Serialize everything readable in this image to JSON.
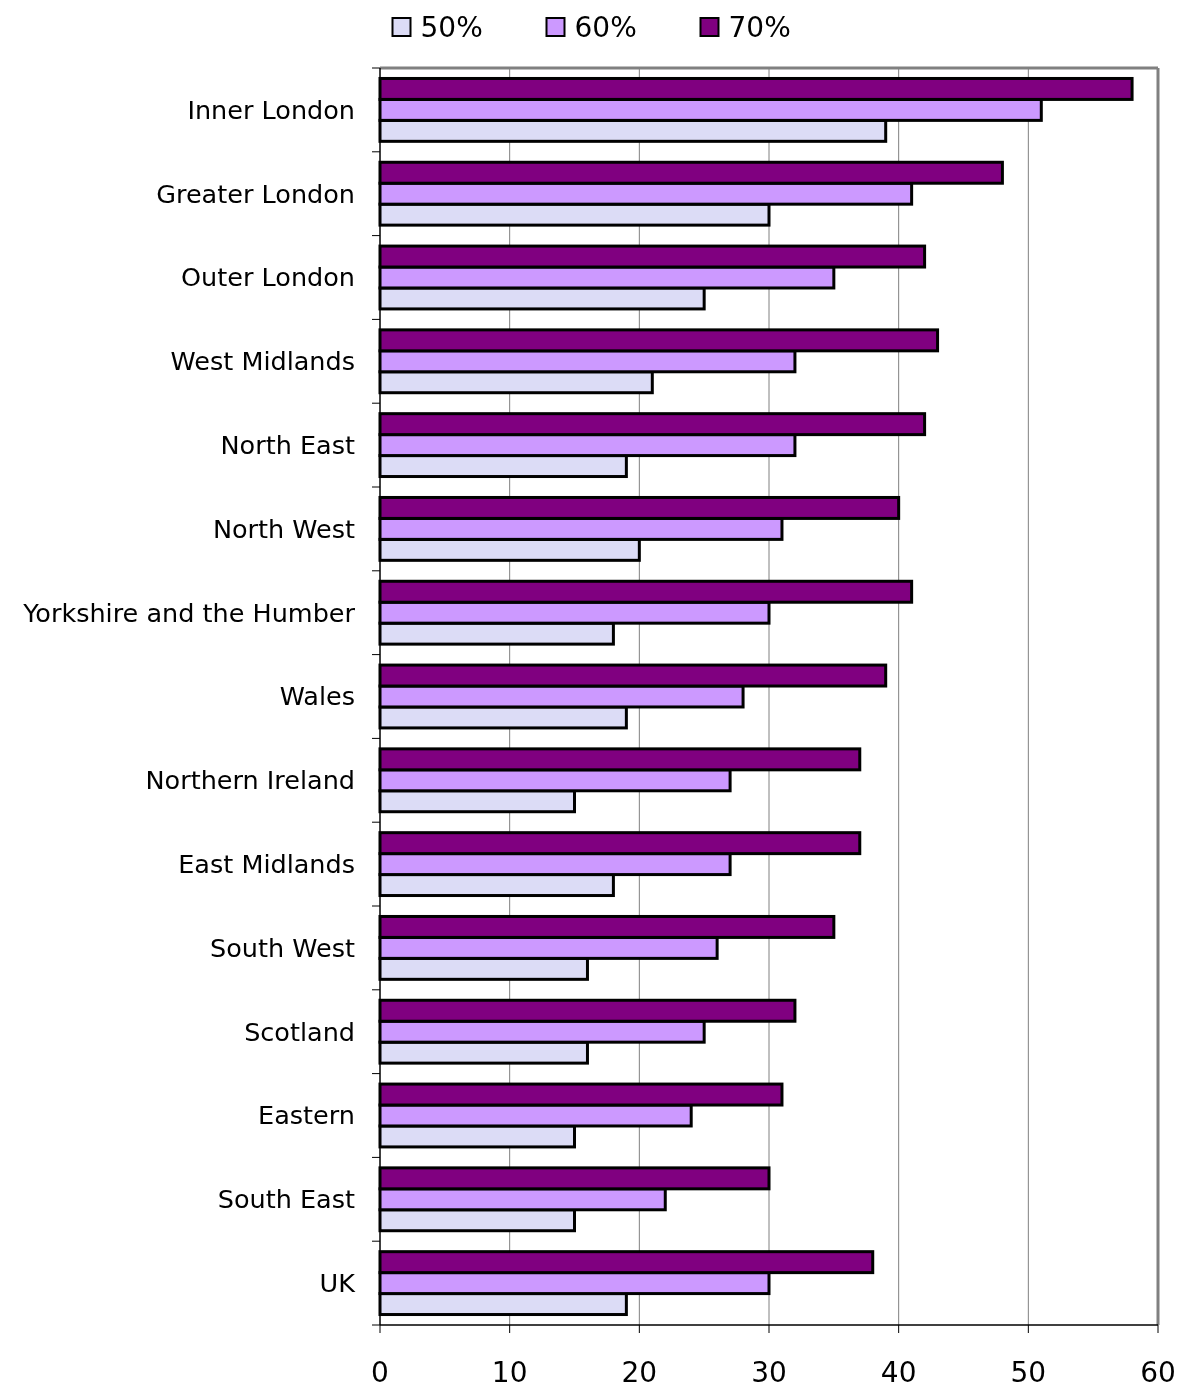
{
  "chart_data": {
    "type": "bar",
    "orientation": "horizontal",
    "categories": [
      "Inner London",
      "Greater London",
      "Outer London",
      "West Midlands",
      "North East",
      "North West",
      "Yorkshire and the Humber",
      "Wales",
      "Northern Ireland",
      "East Midlands",
      "South West",
      "Scotland",
      "Eastern",
      "South East",
      "UK"
    ],
    "series": [
      {
        "name": "50%",
        "color": "#dcdcf6",
        "values": [
          39,
          30,
          25,
          21,
          19,
          20,
          18,
          19,
          15,
          18,
          16,
          16,
          15,
          15,
          19
        ]
      },
      {
        "name": "60%",
        "color": "#cc99ff",
        "values": [
          51,
          41,
          35,
          32,
          32,
          31,
          30,
          28,
          27,
          27,
          26,
          25,
          24,
          22,
          30
        ]
      },
      {
        "name": "70%",
        "color": "#800080",
        "values": [
          58,
          48,
          42,
          43,
          42,
          40,
          41,
          39,
          37,
          37,
          35,
          32,
          31,
          30,
          38
        ]
      }
    ],
    "xlim": [
      0,
      60
    ],
    "xticks": [
      0,
      10,
      20,
      30,
      40,
      50,
      60
    ],
    "grid": "x",
    "legend": "top"
  }
}
